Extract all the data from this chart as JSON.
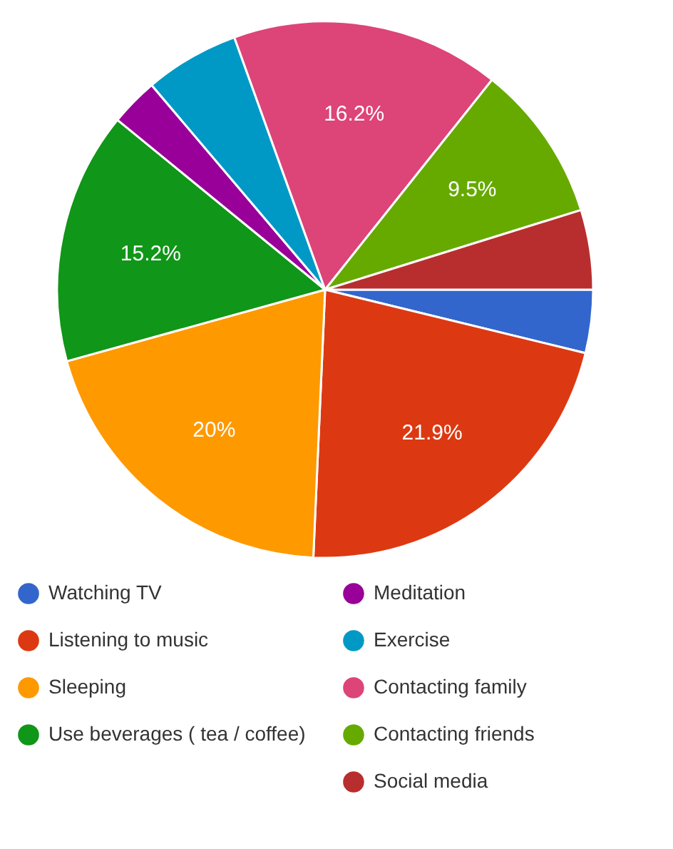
{
  "chart_data": {
    "type": "pie",
    "categories": [
      "Watching TV",
      "Listening to music",
      "Sleeping",
      "Use beverages ( tea / coffee)",
      "Meditation",
      "Exercise",
      "Contacting family",
      "Contacting friends",
      "Social media"
    ],
    "values": [
      3.8,
      21.9,
      20,
      15.2,
      2.9,
      5.7,
      16.2,
      9.5,
      4.8
    ],
    "value_labels": [
      null,
      "21.9%",
      "20%",
      "15.2%",
      null,
      null,
      "16.2%",
      "9.5%",
      null
    ],
    "colors": [
      "#3366cc",
      "#dc3912",
      "#ff9900",
      "#109618",
      "#990099",
      "#0099c6",
      "#dd4477",
      "#66aa00",
      "#b82e2e"
    ],
    "legend": "bottom"
  }
}
